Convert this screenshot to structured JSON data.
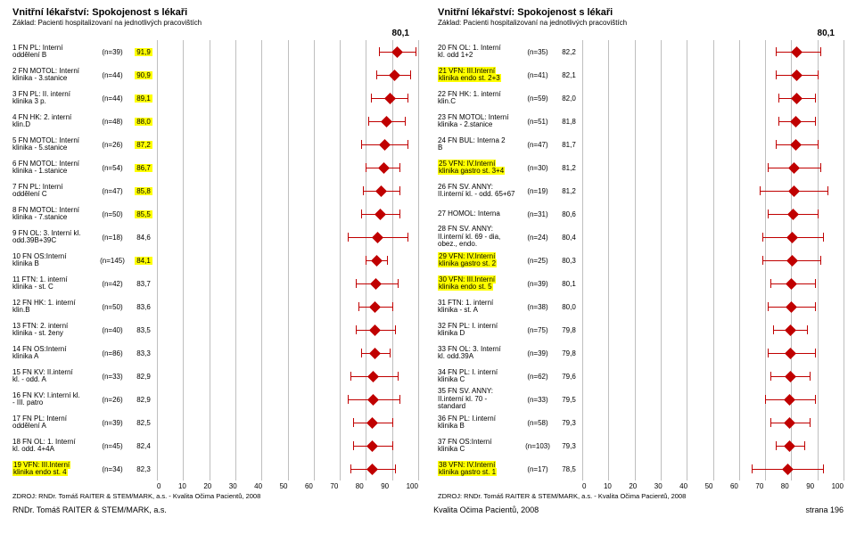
{
  "global": {
    "xmin": 0,
    "xmax": 100,
    "xstep": 10,
    "marker_color": "#c00000",
    "grid_color": "#bfbfbf",
    "source": "ZDROJ: RNDr. Tomáš RAITER & STEM/MARK, a.s. - Kvalita Očima Pacientů, 2008",
    "footer_left": "RNDr. Tomáš RAITER & STEM/MARK, a.s.",
    "footer_center": "Kvalita Očima Pacientů, 2008",
    "footer_right": "strana 196"
  },
  "panels": [
    {
      "title": "Vnitřní lékařství: Spokojenost s lékaři",
      "subtitle": "Základ: Pacienti hospitalizovaní na jednotlivých pracovištích",
      "overall": "80,1",
      "rows": [
        {
          "l1": "1 FN PL: Interní",
          "l2": "oddělení B",
          "n": "(n=39)",
          "v": "91,9",
          "vh": true,
          "mean": 91.9,
          "lo": 85,
          "hi": 99,
          "hl": false
        },
        {
          "l1": "2 FN MOTOL: Interní",
          "l2": "klinika - 3.stanice",
          "n": "(n=44)",
          "v": "90,9",
          "vh": true,
          "mean": 90.9,
          "lo": 84,
          "hi": 97,
          "hl": false
        },
        {
          "l1": "3 FN PL: II. interní",
          "l2": "klinika 3 p.",
          "n": "(n=44)",
          "v": "89,1",
          "vh": true,
          "mean": 89.1,
          "lo": 82,
          "hi": 96,
          "hl": false
        },
        {
          "l1": "4 FN HK: 2. interní",
          "l2": "klin.D",
          "n": "(n=48)",
          "v": "88,0",
          "vh": true,
          "mean": 88.0,
          "lo": 81,
          "hi": 95,
          "hl": false
        },
        {
          "l1": "5 FN MOTOL: Interní",
          "l2": "klinika - 5.stanice",
          "n": "(n=26)",
          "v": "87,2",
          "vh": true,
          "mean": 87.2,
          "lo": 78,
          "hi": 96,
          "hl": false
        },
        {
          "l1": "6 FN MOTOL: Interní",
          "l2": "klinika - 1.stanice",
          "n": "(n=54)",
          "v": "86,7",
          "vh": true,
          "mean": 86.7,
          "lo": 80,
          "hi": 93,
          "hl": false
        },
        {
          "l1": "7 FN PL: Interní",
          "l2": "oddělení C",
          "n": "(n=47)",
          "v": "85,8",
          "vh": true,
          "mean": 85.8,
          "lo": 79,
          "hi": 93,
          "hl": false
        },
        {
          "l1": "8 FN MOTOL: Interní",
          "l2": "klinika - 7.stanice",
          "n": "(n=50)",
          "v": "85,5",
          "vh": true,
          "mean": 85.5,
          "lo": 78,
          "hi": 93,
          "hl": false
        },
        {
          "l1": "9 FN OL: 3. Interní kl.",
          "l2": "odd.39B+39C",
          "n": "(n=18)",
          "v": "84,6",
          "vh": false,
          "mean": 84.6,
          "lo": 73,
          "hi": 96,
          "hl": false
        },
        {
          "l1": "10 FN OS:Interní",
          "l2": "klinika B",
          "n": "(n=145)",
          "v": "84,1",
          "vh": true,
          "mean": 84.1,
          "lo": 80,
          "hi": 88,
          "hl": false
        },
        {
          "l1": "11 FTN: 1. interní",
          "l2": "klinika - st.  C",
          "n": "(n=42)",
          "v": "83,7",
          "vh": false,
          "mean": 83.7,
          "lo": 76,
          "hi": 92,
          "hl": false
        },
        {
          "l1": "12 FN HK: 1. interní",
          "l2": "klin.B",
          "n": "(n=50)",
          "v": "83,6",
          "vh": false,
          "mean": 83.6,
          "lo": 77,
          "hi": 90,
          "hl": false
        },
        {
          "l1": "13 FTN: 2. interní",
          "l2": "klinika - st.  ženy",
          "n": "(n=40)",
          "v": "83,5",
          "vh": false,
          "mean": 83.5,
          "lo": 76,
          "hi": 91,
          "hl": false
        },
        {
          "l1": "14 FN OS:Interní",
          "l2": "klinika A",
          "n": "(n=86)",
          "v": "83,3",
          "vh": false,
          "mean": 83.3,
          "lo": 78,
          "hi": 89,
          "hl": false
        },
        {
          "l1": "15 FN KV: II.interní",
          "l2": "kl. - odd. A",
          "n": "(n=33)",
          "v": "82,9",
          "vh": false,
          "mean": 82.9,
          "lo": 74,
          "hi": 92,
          "hl": false
        },
        {
          "l1": "16 FN KV: I.interní kl.",
          "l2": "- III. patro",
          "n": "(n=26)",
          "v": "82,9",
          "vh": false,
          "mean": 82.9,
          "lo": 73,
          "hi": 93,
          "hl": false
        },
        {
          "l1": "17 FN PL: Interní",
          "l2": "oddělení A",
          "n": "(n=39)",
          "v": "82,5",
          "vh": false,
          "mean": 82.5,
          "lo": 75,
          "hi": 90,
          "hl": false
        },
        {
          "l1": "18 FN OL: 1. Interní",
          "l2": "kl. odd. 4+4A",
          "n": "(n=45)",
          "v": "82,4",
          "vh": false,
          "mean": 82.4,
          "lo": 75,
          "hi": 90,
          "hl": false
        },
        {
          "l1": "19 VFN: III.Interní",
          "l2": "klinika endo st. 4",
          "n": "(n=34)",
          "v": "82,3",
          "vh": false,
          "mean": 82.3,
          "lo": 74,
          "hi": 91,
          "hl": true
        }
      ]
    },
    {
      "title": "Vnitřní lékařství: Spokojenost s lékaři",
      "subtitle": "Základ: Pacienti hospitalizovaní na jednotlivých pracovištích",
      "overall": "80,1",
      "rows": [
        {
          "l1": "20 FN OL: 1. Interní",
          "l2": "kl. odd 1+2",
          "n": "(n=35)",
          "v": "82,2",
          "vh": false,
          "mean": 82.2,
          "lo": 74,
          "hi": 91,
          "hl": false
        },
        {
          "l1": "21 VFN: III.Interní",
          "l2": "klinika endo st. 2+3",
          "n": "(n=41)",
          "v": "82,1",
          "vh": false,
          "mean": 82.1,
          "lo": 74,
          "hi": 90,
          "hl": true
        },
        {
          "l1": "22 FN HK: 1. interní",
          "l2": "klin.C",
          "n": "(n=59)",
          "v": "82,0",
          "vh": false,
          "mean": 82.0,
          "lo": 75,
          "hi": 89,
          "hl": false
        },
        {
          "l1": "23 FN MOTOL: Interní",
          "l2": "klinika - 2.stanice",
          "n": "(n=51)",
          "v": "81,8",
          "vh": false,
          "mean": 81.8,
          "lo": 75,
          "hi": 89,
          "hl": false
        },
        {
          "l1": "24 FN BUL: Interna 2",
          "l2": "B",
          "n": "(n=47)",
          "v": "81,7",
          "vh": false,
          "mean": 81.7,
          "lo": 74,
          "hi": 90,
          "hl": false
        },
        {
          "l1": "25 VFN: IV.Interní",
          "l2": "klinika gastro st. 3+4",
          "n": "(n=30)",
          "v": "81,2",
          "vh": false,
          "mean": 81.2,
          "lo": 71,
          "hi": 91,
          "hl": true
        },
        {
          "l1": "26 FN SV. ANNY:",
          "l2": "II.interní kl. - odd. 65+67",
          "n": "(n=19)",
          "v": "81,2",
          "vh": false,
          "mean": 81.2,
          "lo": 68,
          "hi": 94,
          "hl": false
        },
        {
          "l1": "27 HOMOL: Interna",
          "l2": "",
          "n": "(n=31)",
          "v": "80,6",
          "vh": false,
          "mean": 80.6,
          "lo": 71,
          "hi": 90,
          "hl": false
        },
        {
          "l1": "28 FN SV. ANNY:",
          "l2": "II.interní kl. 69 - dia, obez., endo.",
          "n": "(n=24)",
          "v": "80,4",
          "vh": false,
          "mean": 80.4,
          "lo": 69,
          "hi": 92,
          "hl": false
        },
        {
          "l1": "29 VFN: IV.Interní",
          "l2": "klinika gastro st. 2",
          "n": "(n=25)",
          "v": "80,3",
          "vh": false,
          "mean": 80.3,
          "lo": 69,
          "hi": 91,
          "hl": true
        },
        {
          "l1": "30 VFN: III.Interní",
          "l2": "klinika endo st. 5",
          "n": "(n=39)",
          "v": "80,1",
          "vh": false,
          "mean": 80.1,
          "lo": 72,
          "hi": 89,
          "hl": true
        },
        {
          "l1": "31 FTN: 1. interní",
          "l2": "klinika - st.  A",
          "n": "(n=38)",
          "v": "80,0",
          "vh": false,
          "mean": 80.0,
          "lo": 71,
          "hi": 89,
          "hl": false
        },
        {
          "l1": "32 FN PL: I. interní",
          "l2": "klinika D",
          "n": "(n=75)",
          "v": "79,8",
          "vh": false,
          "mean": 79.8,
          "lo": 73,
          "hi": 86,
          "hl": false
        },
        {
          "l1": "33 FN OL: 3. Interní",
          "l2": "kl. odd.39A",
          "n": "(n=39)",
          "v": "79,8",
          "vh": false,
          "mean": 79.8,
          "lo": 71,
          "hi": 89,
          "hl": false
        },
        {
          "l1": "34 FN PL: I. interní",
          "l2": "klinika C",
          "n": "(n=62)",
          "v": "79,6",
          "vh": false,
          "mean": 79.6,
          "lo": 72,
          "hi": 87,
          "hl": false
        },
        {
          "l1": "35 FN SV. ANNY:",
          "l2": "II.interní kl. 70 - standard",
          "n": "(n=33)",
          "v": "79,5",
          "vh": false,
          "mean": 79.5,
          "lo": 70,
          "hi": 89,
          "hl": false
        },
        {
          "l1": "36 FN PL: I.interní",
          "l2": "klinika B",
          "n": "(n=58)",
          "v": "79,3",
          "vh": false,
          "mean": 79.3,
          "lo": 72,
          "hi": 87,
          "hl": false
        },
        {
          "l1": "37 FN OS:Interní",
          "l2": "klinika C",
          "n": "(n=103)",
          "v": "79,3",
          "vh": false,
          "mean": 79.3,
          "lo": 74,
          "hi": 85,
          "hl": false
        },
        {
          "l1": "38 VFN: IV.Interní",
          "l2": "klinika gastro st. 1",
          "n": "(n=17)",
          "v": "78,5",
          "vh": false,
          "mean": 78.5,
          "lo": 65,
          "hi": 92,
          "hl": true
        }
      ]
    }
  ]
}
